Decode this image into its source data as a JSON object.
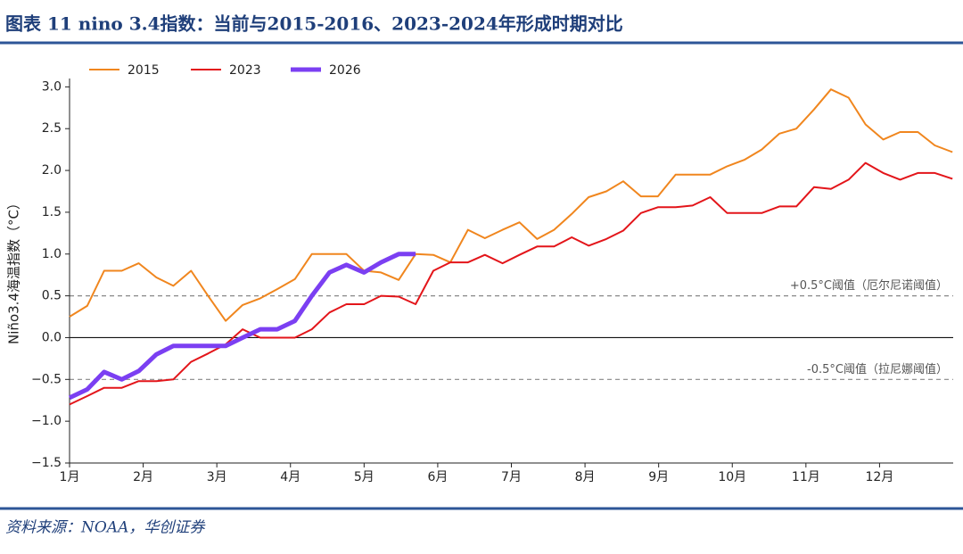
{
  "chart_data": {
    "type": "line",
    "title": "图表 11 nino 3.4指数：当前与2015-2016、2023-2024年形成时期对比",
    "source": "资料来源：NOAA，华创证券",
    "ylabel": "Niño3.4海温指数（°C）",
    "x": [
      1,
      1.24,
      1.47,
      1.71,
      1.94,
      2.18,
      2.41,
      2.65,
      2.88,
      3.12,
      3.35,
      3.59,
      3.82,
      4.06,
      4.29,
      4.53,
      4.76,
      5.0,
      5.23,
      5.47,
      5.7,
      5.94,
      6.17,
      6.41,
      6.64,
      6.88,
      7.11,
      7.35,
      7.58,
      7.82,
      8.05,
      8.29,
      8.52,
      8.76,
      8.99,
      9.23,
      9.46,
      9.7,
      9.93,
      10.17,
      10.4,
      10.64,
      10.87,
      11.11,
      11.34,
      11.58,
      11.81,
      12.05,
      12.28,
      12.52,
      12.75,
      12.99
    ],
    "series": [
      {
        "name": "2015",
        "color": "#f0861e",
        "width": 2,
        "values": [
          0.25,
          0.38,
          0.8,
          0.8,
          0.89,
          0.72,
          0.62,
          0.8,
          0.5,
          0.2,
          0.39,
          0.47,
          0.58,
          0.7,
          1.0,
          1.0,
          1.0,
          0.8,
          0.78,
          0.69,
          1.0,
          0.99,
          0.9,
          1.29,
          1.19,
          1.29,
          1.38,
          1.18,
          1.29,
          1.48,
          1.68,
          1.75,
          1.87,
          1.69,
          1.69,
          1.95,
          1.95,
          1.95,
          2.05,
          2.13,
          2.25,
          2.44,
          2.5,
          2.73,
          2.97,
          2.87,
          2.55,
          2.37,
          2.46,
          2.46,
          2.3,
          2.22
        ]
      },
      {
        "name": "2023",
        "color": "#e3151a",
        "width": 2,
        "values": [
          -0.8,
          -0.7,
          -0.6,
          -0.6,
          -0.52,
          -0.52,
          -0.5,
          -0.29,
          -0.19,
          -0.08,
          0.1,
          0.0,
          0.0,
          0.0,
          0.1,
          0.3,
          0.4,
          0.4,
          0.5,
          0.49,
          0.4,
          0.8,
          0.9,
          0.9,
          0.99,
          0.89,
          0.99,
          1.09,
          1.09,
          1.2,
          1.1,
          1.18,
          1.28,
          1.49,
          1.56,
          1.56,
          1.58,
          1.68,
          1.49,
          1.49,
          1.49,
          1.57,
          1.57,
          1.8,
          1.78,
          1.89,
          2.09,
          1.97,
          1.89,
          1.97,
          1.97,
          1.9
        ]
      },
      {
        "name": "2026",
        "color": "#7b3ff2",
        "width": 5,
        "values": [
          -0.72,
          -0.62,
          -0.41,
          -0.5,
          -0.4,
          -0.2,
          -0.1,
          -0.1,
          -0.1,
          -0.1,
          0.0,
          0.1,
          0.1,
          0.2,
          0.5,
          0.78,
          0.87,
          0.78,
          0.9,
          1.0,
          1.0,
          null,
          null,
          null,
          null,
          null,
          null,
          null,
          null,
          null,
          null,
          null,
          null,
          null,
          null,
          null,
          null,
          null,
          null,
          null,
          null,
          null,
          null,
          null,
          null,
          null,
          null,
          null,
          null,
          null,
          null,
          null
        ]
      }
    ],
    "xlim": [
      1,
      13
    ],
    "xticks": [
      {
        "value": 1,
        "label": "1月"
      },
      {
        "value": 2,
        "label": "2月"
      },
      {
        "value": 3,
        "label": "3月"
      },
      {
        "value": 4,
        "label": "4月"
      },
      {
        "value": 5,
        "label": "5月"
      },
      {
        "value": 6,
        "label": "6月"
      },
      {
        "value": 7,
        "label": "7月"
      },
      {
        "value": 8,
        "label": "8月"
      },
      {
        "value": 9,
        "label": "9月"
      },
      {
        "value": 10,
        "label": "10月"
      },
      {
        "value": 11,
        "label": "11月"
      },
      {
        "value": 12,
        "label": "12月"
      }
    ],
    "ylim": [
      -1.5,
      3.1
    ],
    "yticks": [
      {
        "value": 3,
        "label": "3.0"
      },
      {
        "value": 2.5,
        "label": "2.5"
      },
      {
        "value": 2,
        "label": "2.0"
      },
      {
        "value": 1.5,
        "label": "1.5"
      },
      {
        "value": 1,
        "label": "1.0"
      },
      {
        "value": 0.5,
        "label": "0.5"
      },
      {
        "value": 0,
        "label": "0.0"
      },
      {
        "value": -0.5,
        "label": "−0.5"
      },
      {
        "value": -1,
        "label": "−1.0"
      },
      {
        "value": -1.5,
        "label": "−1.5"
      }
    ],
    "reference_lines": [
      {
        "value": 0.5,
        "label": "+0.5°C阈值（厄尔尼诺阈值）",
        "style": "dashed"
      },
      {
        "value": -0.5,
        "label": "-0.5°C阈值（拉尼娜阈值）",
        "style": "dashed"
      },
      {
        "value": 0,
        "style": "solid"
      }
    ],
    "legend": "top-left"
  }
}
